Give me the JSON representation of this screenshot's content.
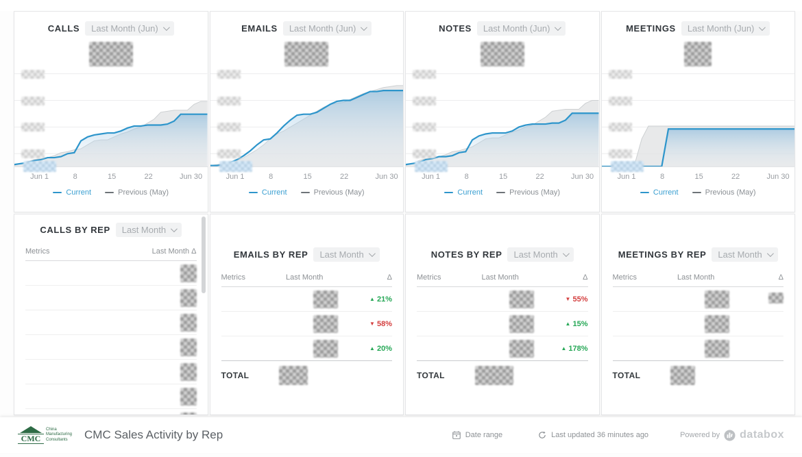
{
  "top_panels": [
    {
      "title": "CALLS",
      "range": "Last Month (Jun)"
    },
    {
      "title": "EMAILS",
      "range": "Last Month (Jun)"
    },
    {
      "title": "NOTES",
      "range": "Last Month (Jun)"
    },
    {
      "title": "MEETINGS",
      "range": "Last Month (Jun)"
    }
  ],
  "x_ticks": [
    "Jun 1",
    "8",
    "15",
    "22",
    "Jun 30"
  ],
  "legend": {
    "current": "Current",
    "previous": "Previous (May)"
  },
  "chart_data": [
    {
      "type": "area",
      "title": "CALLS cumulative, June vs May",
      "x_unit": "day of month (1-30)",
      "note": "axis value labels and totals are blurred/redacted in source; values are relative heights 0-100",
      "series": [
        {
          "name": "Current",
          "values": [
            2,
            3,
            4,
            6,
            7,
            9,
            9,
            10,
            13,
            14,
            26,
            30,
            32,
            33,
            34,
            34,
            36,
            39,
            41,
            41,
            42,
            42,
            42,
            43,
            46,
            53,
            53,
            53,
            53,
            53
          ]
        },
        {
          "name": "Previous (May)",
          "values": [
            1,
            3,
            5,
            7,
            8,
            9,
            11,
            14,
            15,
            17,
            18,
            22,
            26,
            27,
            27,
            30,
            33,
            35,
            38,
            40,
            44,
            48,
            55,
            56,
            57,
            57,
            57,
            63,
            66,
            66
          ]
        }
      ],
      "xticklabels": [
        "Jun 1",
        "8",
        "15",
        "22",
        "Jun 30"
      ],
      "grid": true,
      "legend_position": "bottom"
    },
    {
      "type": "area",
      "title": "EMAILS cumulative, June vs May",
      "x_unit": "day of month (1-30)",
      "note": "axis value labels and totals are blurred/redacted in source; values are relative heights 0-100",
      "series": [
        {
          "name": "Current",
          "values": [
            1,
            1,
            2,
            4,
            7,
            11,
            16,
            22,
            27,
            28,
            34,
            41,
            47,
            52,
            53,
            53,
            55,
            59,
            63,
            66,
            67,
            67,
            70,
            73,
            76,
            76,
            77,
            77,
            77,
            77
          ]
        },
        {
          "name": "Previous (May)",
          "values": [
            1,
            2,
            3,
            4,
            6,
            9,
            13,
            17,
            22,
            28,
            33,
            36,
            40,
            44,
            48,
            52,
            56,
            60,
            63,
            64,
            65,
            68,
            71,
            74,
            76,
            78,
            80,
            81,
            82,
            82
          ]
        }
      ],
      "xticklabels": [
        "Jun 1",
        "8",
        "15",
        "22",
        "Jun 30"
      ],
      "grid": true,
      "legend_position": "bottom"
    },
    {
      "type": "area",
      "title": "NOTES cumulative, June vs May",
      "x_unit": "day of month (1-30)",
      "note": "axis value labels and totals are blurred/redacted in source; values are relative heights 0-100",
      "series": [
        {
          "name": "Current",
          "values": [
            2,
            3,
            4,
            7,
            8,
            10,
            10,
            11,
            14,
            15,
            27,
            31,
            33,
            34,
            34,
            34,
            36,
            40,
            42,
            43,
            43,
            43,
            44,
            44,
            47,
            54,
            54,
            54,
            54,
            54
          ]
        },
        {
          "name": "Previous (May)",
          "values": [
            1,
            3,
            6,
            8,
            9,
            10,
            12,
            15,
            16,
            18,
            20,
            24,
            28,
            29,
            29,
            32,
            35,
            37,
            40,
            42,
            46,
            50,
            56,
            57,
            58,
            58,
            58,
            64,
            67,
            67
          ]
        }
      ],
      "xticklabels": [
        "Jun 1",
        "8",
        "15",
        "22",
        "Jun 30"
      ],
      "grid": true,
      "legend_position": "bottom"
    },
    {
      "type": "area",
      "title": "MEETINGS cumulative, June vs May",
      "x_unit": "day of month (1-30)",
      "note": "axis value labels and totals are blurred/redacted in source; values are relative heights 0-100",
      "series": [
        {
          "name": "Current",
          "values": [
            0,
            0,
            0,
            0,
            0,
            0,
            0,
            0,
            0,
            0,
            38,
            38,
            38,
            38,
            38,
            38,
            38,
            38,
            38,
            38,
            38,
            38,
            38,
            38,
            38,
            38,
            38,
            38,
            38,
            38
          ]
        },
        {
          "name": "Previous (May)",
          "values": [
            0,
            0,
            0,
            0,
            0,
            4,
            28,
            41,
            41,
            41,
            41,
            41,
            41,
            41,
            41,
            41,
            41,
            41,
            41,
            41,
            41,
            41,
            41,
            41,
            41,
            41,
            41,
            41,
            41,
            41
          ]
        }
      ],
      "xticklabels": [
        "Jun 1",
        "8",
        "15",
        "22",
        "Jun 30"
      ],
      "grid": true,
      "legend_position": "bottom"
    }
  ],
  "by_rep": [
    {
      "title": "CALLS BY REP",
      "range": "Last Month",
      "col_metrics": "Metrics",
      "col_value": "Last Month Δ",
      "col_delta": "",
      "rows": [
        {},
        {},
        {},
        {},
        {},
        {},
        {},
        {}
      ],
      "total": ""
    },
    {
      "title": "EMAILS BY REP",
      "range": "Last Month",
      "col_metrics": "Metrics",
      "col_value": "Last Month",
      "col_delta": "Δ",
      "rows": [
        {
          "dir": "up",
          "delta": "21%"
        },
        {
          "dir": "down",
          "delta": "58%"
        },
        {
          "dir": "up",
          "delta": "20%"
        }
      ],
      "total": "TOTAL"
    },
    {
      "title": "NOTES BY REP",
      "range": "Last Month",
      "col_metrics": "Metrics",
      "col_value": "Last Month",
      "col_delta": "Δ",
      "rows": [
        {
          "dir": "down",
          "delta": "55%"
        },
        {
          "dir": "up",
          "delta": "15%"
        },
        {
          "dir": "up",
          "delta": "178%"
        }
      ],
      "total": "TOTAL"
    },
    {
      "title": "MEETINGS BY REP",
      "range": "Last Month",
      "col_metrics": "Metrics",
      "col_value": "Last Month",
      "col_delta": "Δ",
      "rows": [
        {
          "dir": "blur",
          "delta": ""
        },
        {},
        {}
      ],
      "total": "TOTAL"
    }
  ],
  "footer": {
    "logo_acronym": "CMC",
    "logo_lines": [
      "China",
      "Manufacturing",
      "Consultants"
    ],
    "title": "CMC Sales Activity by Rep",
    "date_range_label": "Date range",
    "last_updated": "Last updated 36 minutes ago",
    "powered_by": "Powered by",
    "brand": "databox"
  },
  "colors": {
    "current_line": "#2d95cb",
    "current_fill_top": "#7db4db",
    "previous_fill": "#e0e2e3",
    "positive": "#27a857",
    "negative": "#d44040",
    "logo_green": "#2d6b45",
    "brand_gray": "#c5c8cb"
  }
}
